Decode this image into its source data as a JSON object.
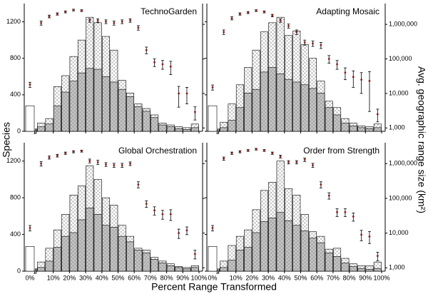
{
  "axis_labels": {
    "x": "Percent Range Transformed",
    "y": "Species",
    "y2": "Avg. geographic range size (km²)"
  },
  "chart_data": [
    {
      "type": "histogram",
      "title": "TechnoGarden",
      "bins": [
        0,
        5,
        10,
        15,
        20,
        25,
        30,
        35,
        40,
        45,
        50,
        55,
        60,
        65,
        70,
        75,
        80,
        85,
        90,
        95,
        100
      ],
      "xlim": [
        0,
        100
      ],
      "xticks": [
        {
          "value": 10,
          "label": "10%"
        },
        {
          "value": 20,
          "label": "20%"
        },
        {
          "value": 30,
          "label": "30%"
        },
        {
          "value": 40,
          "label": "40%"
        },
        {
          "value": 50,
          "label": "50%"
        },
        {
          "value": 60,
          "label": "60%"
        },
        {
          "value": 70,
          "label": "70%"
        },
        {
          "value": 80,
          "label": "80%"
        },
        {
          "value": 90,
          "label": "90%"
        },
        {
          "value": 100,
          "label": "100%"
        }
      ],
      "ylim": [
        0,
        1400
      ],
      "yticks": [
        0,
        400,
        800,
        1200
      ],
      "y2lim": [
        800,
        4000000
      ],
      "log_y2": true,
      "y2ticks": [
        {
          "value": 1000,
          "label": "1,000"
        },
        {
          "value": 10000,
          "label": "10,000"
        },
        {
          "value": 100000,
          "label": "100,000"
        },
        {
          "value": 1000000,
          "label": "1,000,000"
        }
      ],
      "x_tick_labels": false,
      "y_tick_labels": true,
      "y2_tick_labels": false,
      "zero_bar": {
        "label": "0%",
        "value": 280,
        "color": "#ffffff",
        "range_size": 18000,
        "range_error": 3000
      },
      "series": [
        {
          "color": "#ffffff",
          "values": [
            90,
            140,
            490,
            610,
            820,
            1000,
            1250,
            1190,
            1040,
            890,
            560,
            420,
            300,
            250,
            180,
            90,
            70,
            50,
            40,
            80
          ]
        },
        {
          "color": "#c4c4c4",
          "values": [
            50,
            80,
            280,
            430,
            550,
            640,
            690,
            680,
            600,
            540,
            460,
            380,
            270,
            220,
            150,
            70,
            50,
            30,
            20,
            40
          ]
        },
        {
          "axis": "y2",
          "color": "#8b1a1a",
          "values": [
            1100000,
            1700000,
            2000000,
            2300000,
            2600000,
            2500000,
            1300000,
            1300000,
            1200000,
            1100000,
            1200000,
            1300000,
            800000,
            180000,
            80000,
            70000,
            60000,
            10000,
            10000,
            2900
          ],
          "errors": [
            150000,
            150000,
            150000,
            150000,
            150000,
            150000,
            150000,
            150000,
            150000,
            150000,
            150000,
            150000,
            120000,
            40000,
            20000,
            20000,
            25000,
            6000,
            5000,
            1200
          ]
        }
      ]
    },
    {
      "type": "histogram",
      "title": "Adapting Mosaic",
      "bins": [
        0,
        5,
        10,
        15,
        20,
        25,
        30,
        35,
        40,
        45,
        50,
        55,
        60,
        65,
        70,
        75,
        80,
        85,
        90,
        95,
        100
      ],
      "xlim": [
        0,
        100
      ],
      "xticks": [
        {
          "value": 10,
          "label": "10%"
        },
        {
          "value": 20,
          "label": "20%"
        },
        {
          "value": 30,
          "label": "30%"
        },
        {
          "value": 40,
          "label": "40%"
        },
        {
          "value": 50,
          "label": "50%"
        },
        {
          "value": 60,
          "label": "60%"
        },
        {
          "value": 70,
          "label": "70%"
        },
        {
          "value": 80,
          "label": "80%"
        },
        {
          "value": 90,
          "label": "90%"
        },
        {
          "value": 100,
          "label": "100%"
        }
      ],
      "ylim": [
        0,
        1400
      ],
      "yticks": [
        0,
        400,
        800,
        1200
      ],
      "y2lim": [
        800,
        4000000
      ],
      "log_y2": true,
      "y2ticks": [
        {
          "value": 1000,
          "label": "1,000"
        },
        {
          "value": 10000,
          "label": "10,000"
        },
        {
          "value": 100000,
          "label": "100,000"
        },
        {
          "value": 1000000,
          "label": "1,000,000"
        }
      ],
      "x_tick_labels": false,
      "y_tick_labels": false,
      "y2_tick_labels": true,
      "zero_bar": {
        "label": "0%",
        "value": 280,
        "color": "#ffffff",
        "range_size": 15000,
        "range_error": 2500
      },
      "series": [
        {
          "color": "#ffffff",
          "values": [
            100,
            300,
            510,
            700,
            890,
            1090,
            1190,
            1250,
            1050,
            1100,
            950,
            800,
            550,
            330,
            260,
            140,
            90,
            60,
            50,
            80
          ]
        },
        {
          "color": "#c4c4c4",
          "values": [
            40,
            120,
            260,
            420,
            460,
            650,
            700,
            630,
            570,
            540,
            510,
            470,
            420,
            260,
            180,
            90,
            60,
            40,
            30,
            40
          ]
        },
        {
          "axis": "y2",
          "color": "#8b1a1a",
          "values": [
            600000,
            1500000,
            2000000,
            2200000,
            2500000,
            2300000,
            1800000,
            1300000,
            900000,
            600000,
            300000,
            280000,
            250000,
            100000,
            70000,
            40000,
            30000,
            25000,
            23000,
            2500
          ],
          "errors": [
            90000,
            150000,
            150000,
            150000,
            150000,
            150000,
            150000,
            150000,
            120000,
            90000,
            50000,
            50000,
            50000,
            25000,
            20000,
            15000,
            15000,
            15000,
            20000,
            1000
          ]
        }
      ]
    },
    {
      "type": "histogram",
      "title": "Global Orchestration",
      "bins": [
        0,
        5,
        10,
        15,
        20,
        25,
        30,
        35,
        40,
        45,
        50,
        55,
        60,
        65,
        70,
        75,
        80,
        85,
        90,
        95,
        100
      ],
      "xlim": [
        0,
        100
      ],
      "xticks": [
        {
          "value": 10,
          "label": "10%"
        },
        {
          "value": 20,
          "label": "20%"
        },
        {
          "value": 30,
          "label": "30%"
        },
        {
          "value": 40,
          "label": "40%"
        },
        {
          "value": 50,
          "label": "50%"
        },
        {
          "value": 60,
          "label": "60%"
        },
        {
          "value": 70,
          "label": "70%"
        },
        {
          "value": 80,
          "label": "80%"
        },
        {
          "value": 90,
          "label": "90%"
        },
        {
          "value": 100,
          "label": "100%"
        }
      ],
      "ylim": [
        0,
        1400
      ],
      "yticks": [
        0,
        400,
        800,
        1200
      ],
      "y2lim": [
        800,
        4000000
      ],
      "log_y2": true,
      "y2ticks": [
        {
          "value": 1000,
          "label": "1,000"
        },
        {
          "value": 10000,
          "label": "10,000"
        },
        {
          "value": 100000,
          "label": "100,000"
        },
        {
          "value": 1000000,
          "label": "1,000,000"
        }
      ],
      "x_tick_labels": true,
      "y_tick_labels": true,
      "y2_tick_labels": false,
      "zero_bar": {
        "label": "0%",
        "value": 270,
        "color": "#ffffff",
        "range_size": 14000,
        "range_error": 2500
      },
      "series": [
        {
          "color": "#ffffff",
          "values": [
            100,
            250,
            450,
            620,
            830,
            930,
            1150,
            1000,
            800,
            720,
            500,
            380,
            250,
            230,
            150,
            110,
            80,
            50,
            40,
            60
          ]
        },
        {
          "color": "#c4c4c4",
          "values": [
            40,
            110,
            260,
            380,
            420,
            560,
            690,
            620,
            500,
            480,
            380,
            320,
            230,
            200,
            130,
            90,
            60,
            40,
            25,
            40
          ]
        },
        {
          "axis": "y2",
          "color": "#8b1a1a",
          "values": [
            1000000,
            1500000,
            1700000,
            2000000,
            2200000,
            2300000,
            1200000,
            1100000,
            950000,
            900000,
            900000,
            1000000,
            250000,
            70000,
            45000,
            35000,
            35000,
            10000,
            12000,
            2500
          ],
          "errors": [
            150000,
            150000,
            150000,
            150000,
            150000,
            150000,
            150000,
            150000,
            120000,
            120000,
            120000,
            120000,
            50000,
            15000,
            12000,
            10000,
            12000,
            3000,
            3000,
            700
          ]
        }
      ]
    },
    {
      "type": "histogram",
      "title": "Order from Strength",
      "bins": [
        0,
        5,
        10,
        15,
        20,
        25,
        30,
        35,
        40,
        45,
        50,
        55,
        60,
        65,
        70,
        75,
        80,
        85,
        90,
        95,
        100
      ],
      "xlim": [
        0,
        100
      ],
      "xticks": [
        {
          "value": 10,
          "label": "10%"
        },
        {
          "value": 20,
          "label": "20%"
        },
        {
          "value": 30,
          "label": "30%"
        },
        {
          "value": 40,
          "label": "40%"
        },
        {
          "value": 50,
          "label": "50%"
        },
        {
          "value": 60,
          "label": "60%"
        },
        {
          "value": 70,
          "label": "70%"
        },
        {
          "value": 80,
          "label": "80%"
        },
        {
          "value": 90,
          "label": "90%"
        },
        {
          "value": 100,
          "label": "100%"
        }
      ],
      "ylim": [
        0,
        1400
      ],
      "yticks": [
        0,
        400,
        800,
        1200
      ],
      "y2lim": [
        800,
        4000000
      ],
      "log_y2": true,
      "y2ticks": [
        {
          "value": 1000,
          "label": "1,000"
        },
        {
          "value": 10000,
          "label": "10,000"
        },
        {
          "value": 100000,
          "label": "100,000"
        },
        {
          "value": 1000000,
          "label": "1,000,000"
        }
      ],
      "x_tick_labels": true,
      "y_tick_labels": false,
      "y2_tick_labels": true,
      "zero_bar": {
        "label": "0%",
        "value": 270,
        "color": "#ffffff",
        "range_size": 14000,
        "range_error": 2500
      },
      "series": [
        {
          "color": "#ffffff",
          "values": [
            110,
            280,
            380,
            450,
            670,
            880,
            970,
            1200,
            900,
            830,
            620,
            430,
            380,
            240,
            250,
            140,
            80,
            60,
            60,
            100
          ]
        },
        {
          "color": "#c4c4c4",
          "values": [
            40,
            120,
            230,
            260,
            420,
            540,
            580,
            640,
            550,
            500,
            440,
            360,
            310,
            200,
            160,
            90,
            50,
            30,
            20,
            30
          ]
        },
        {
          "axis": "y2",
          "color": "#8b1a1a",
          "values": [
            1400000,
            2000000,
            2200000,
            2400000,
            2600000,
            2400000,
            2000000,
            1600000,
            1100000,
            1100000,
            1300000,
            900000,
            250000,
            120000,
            40000,
            40000,
            30000,
            9000,
            8000,
            2200
          ],
          "errors": [
            150000,
            150000,
            150000,
            150000,
            150000,
            150000,
            150000,
            150000,
            120000,
            120000,
            150000,
            120000,
            50000,
            25000,
            10000,
            10000,
            8000,
            3000,
            3000,
            600
          ]
        }
      ]
    }
  ]
}
